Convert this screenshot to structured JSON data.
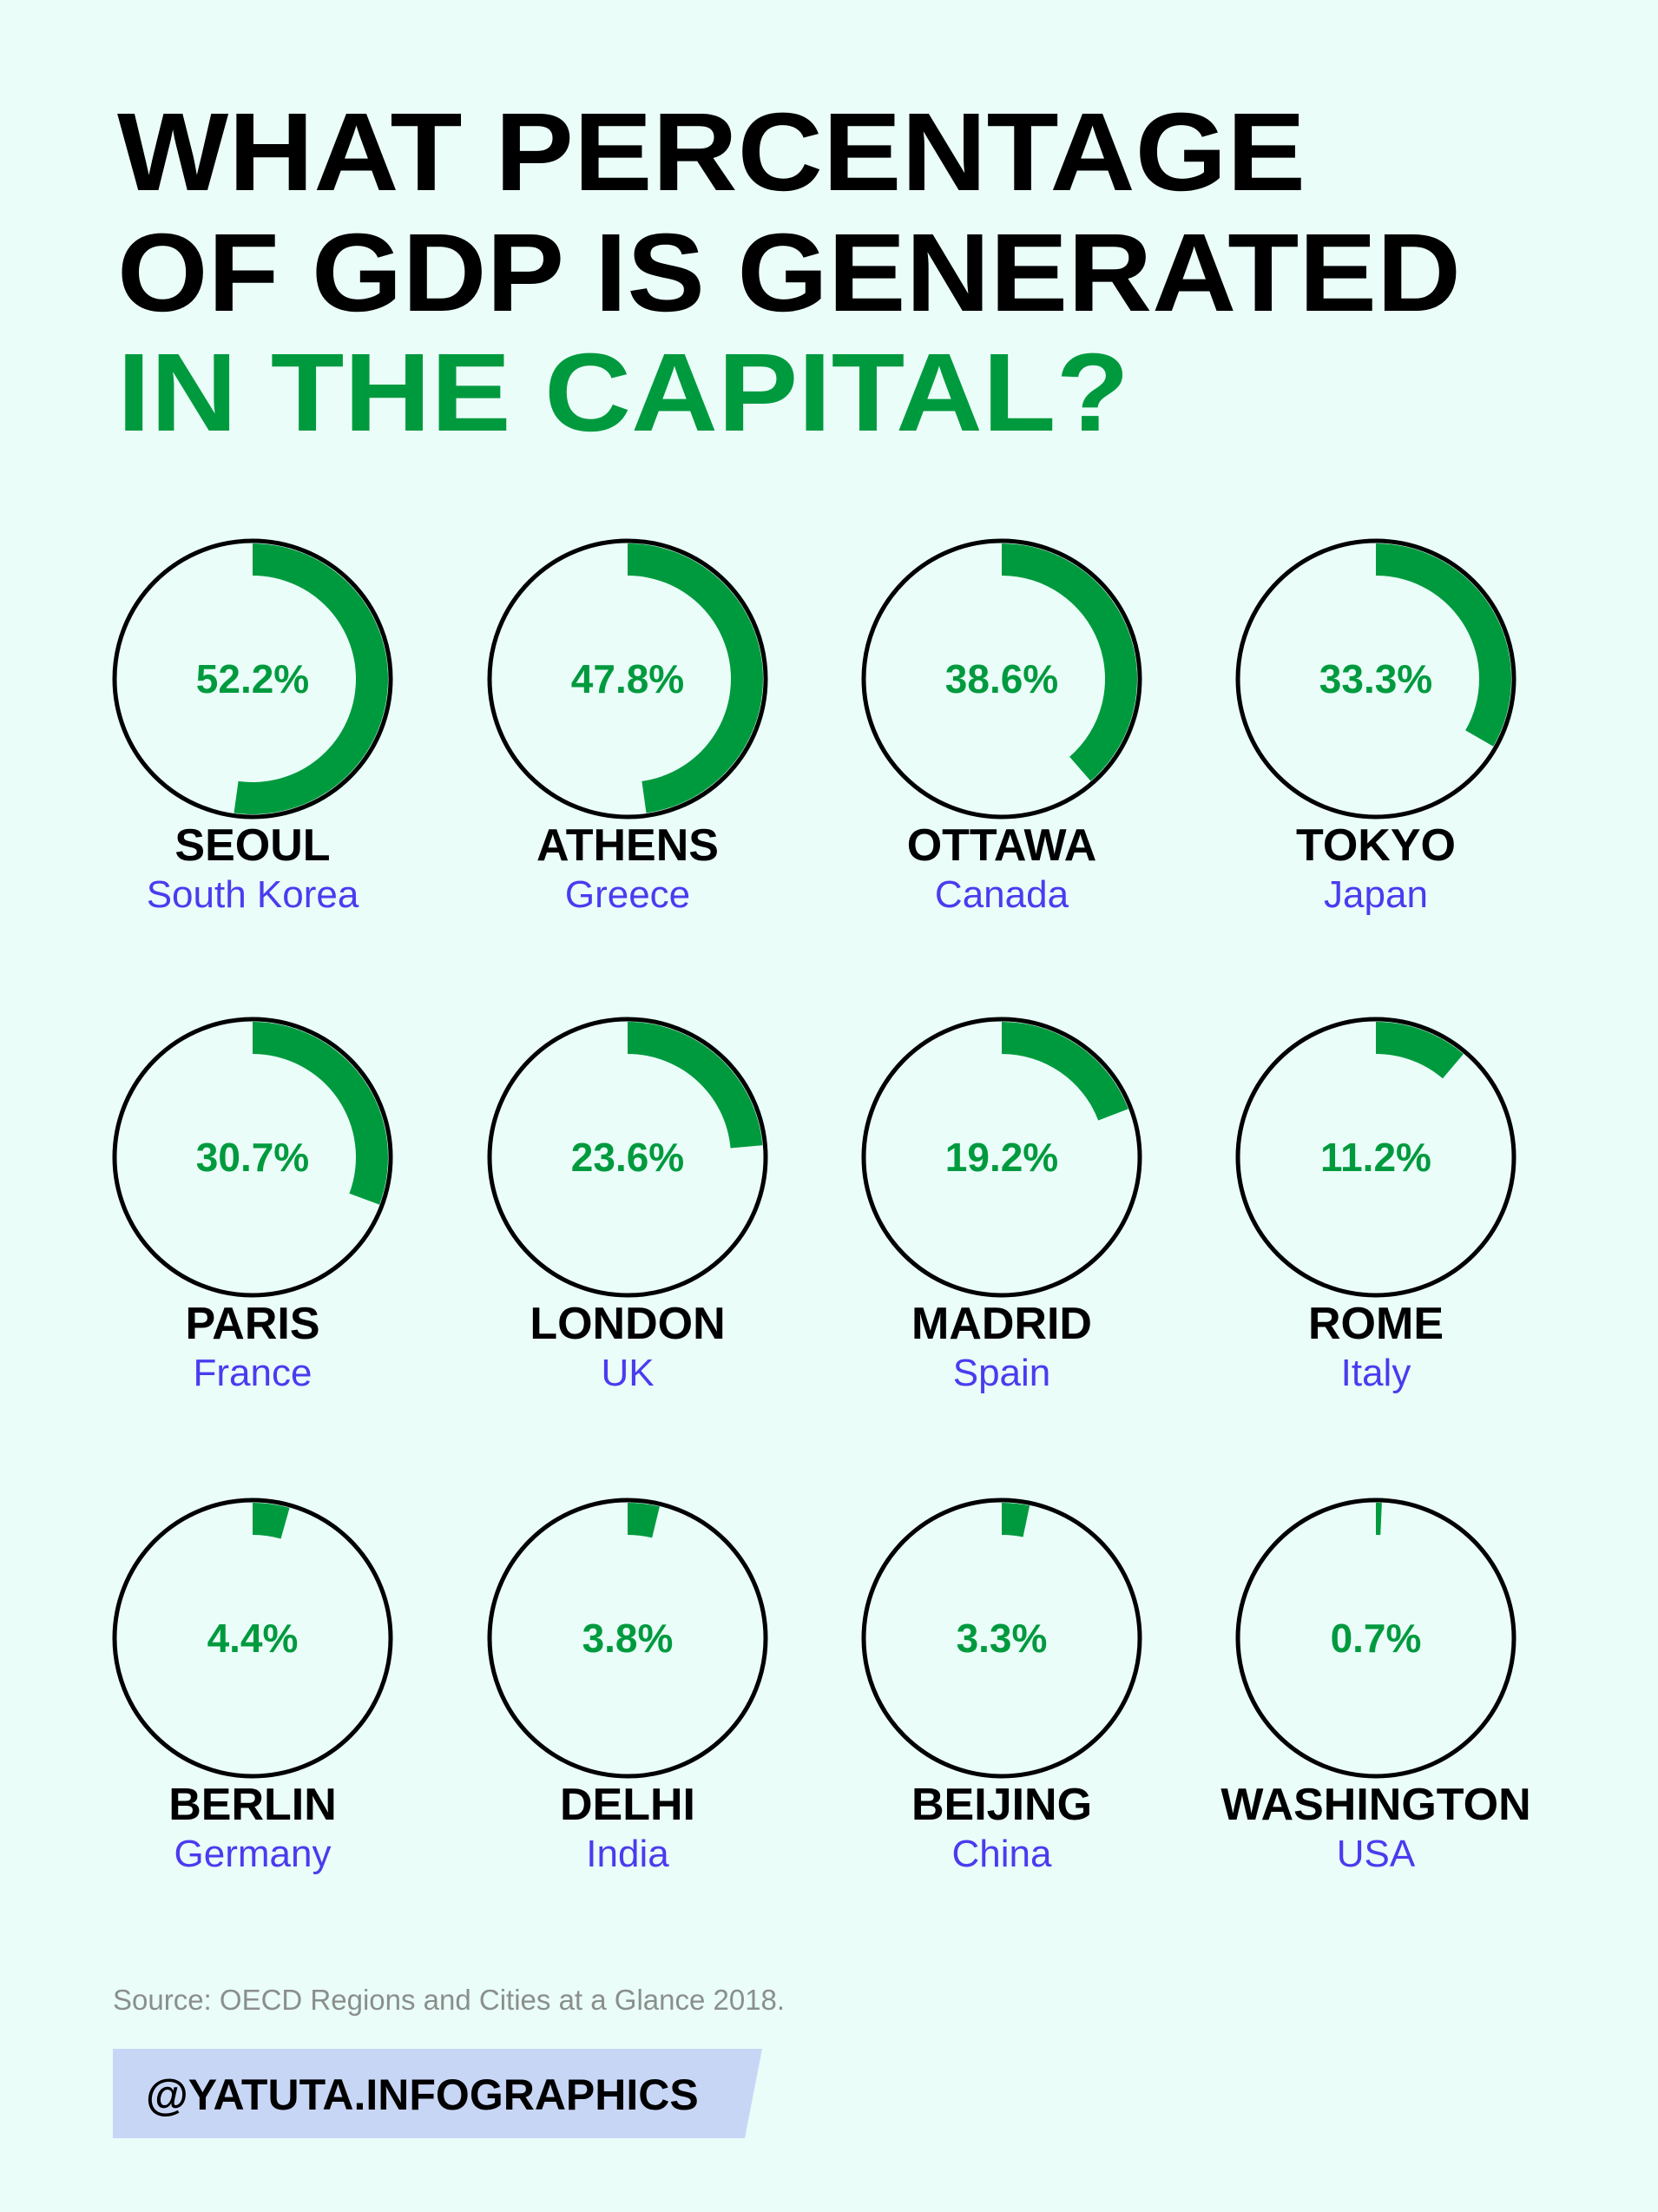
{
  "chart_data": {
    "type": "gauge",
    "title": [
      "WHAT PERCENTAGE",
      "OF GDP IS GENERATED",
      "IN THE CAPITAL?"
    ],
    "categories": [
      "SEOUL",
      "ATHENS",
      "OTTAWA",
      "TOKYO",
      "PARIS",
      "LONDON",
      "MADRID",
      "ROME",
      "BERLIN",
      "DELHI",
      "BEIJING",
      "WASHINGTON"
    ],
    "countries": [
      "South Korea",
      "Greece",
      "Canada",
      "Japan",
      "France",
      "UK",
      "Spain",
      "Italy",
      "Germany",
      "India",
      "China",
      "USA"
    ],
    "values": [
      52.2,
      47.8,
      38.6,
      33.3,
      30.7,
      23.6,
      19.2,
      11.2,
      4.4,
      3.8,
      3.3,
      0.7
    ],
    "value_labels": [
      "52.2%",
      "47.8%",
      "38.6%",
      "33.3%",
      "30.7%",
      "23.6%",
      "19.2%",
      "11.2%",
      "4.4%",
      "3.8%",
      "3.3%",
      "0.7%"
    ],
    "ylim": [
      0,
      100
    ],
    "color": "#009a3e",
    "source": "Source: OECD Regions and Cities at a Glance 2018.",
    "credit": "@YATUTA.INFOGRAPHICS"
  }
}
